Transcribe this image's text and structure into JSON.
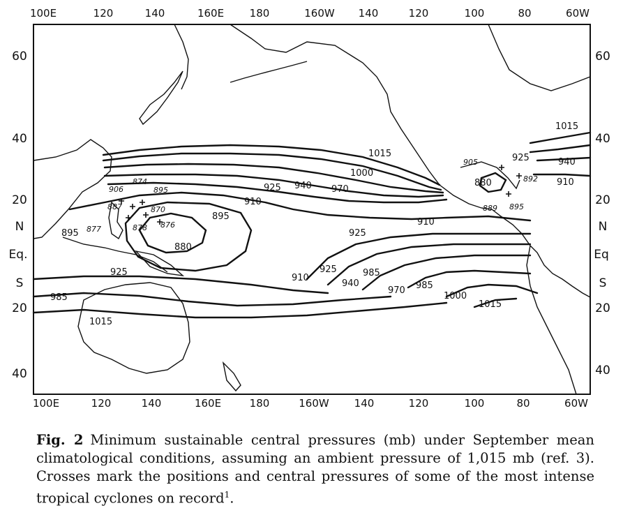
{
  "map": {
    "top_lon_ticks": [
      "100E",
      "120",
      "140",
      "160E",
      "180",
      "160W",
      "140",
      "120",
      "100",
      "80",
      "60W"
    ],
    "bottom_lon_ticks": [
      "100E",
      "120",
      "140",
      "160E",
      "180",
      "160W",
      "140",
      "120",
      "100",
      "80",
      "60W"
    ],
    "left_lat_ticks": [
      "60",
      "40",
      "20",
      "N",
      "Eq.",
      "S",
      "20",
      "40"
    ],
    "right_lat_ticks": [
      "60",
      "40",
      "20",
      "N",
      "Eq",
      "S",
      "20",
      "40"
    ],
    "contour_labels": [
      "1015",
      "1000",
      "925",
      "940",
      "970",
      "910",
      "895",
      "880",
      "895",
      "925",
      "910",
      "910",
      "925",
      "940",
      "985",
      "970",
      "985",
      "1000",
      "1015",
      "925",
      "985",
      "1015",
      "1015",
      "940",
      "910",
      "925",
      "905",
      "880"
    ],
    "storm_labels": [
      "906",
      "874",
      "895",
      "887",
      "870",
      "877",
      "878",
      "876",
      "892",
      "889",
      "895"
    ],
    "colors": {
      "ink": "#111111",
      "background": "#ffffff"
    }
  },
  "caption": {
    "fig_id": "Fig. 2",
    "text": "Minimum sustainable central pressures (mb) under September mean climatological conditions, assuming an ambient pressure of 1,015 mb (ref. 3). Crosses mark the positions and central pressures of some of the most intense tropical cyclones on record",
    "ref": "1",
    "end": "."
  }
}
